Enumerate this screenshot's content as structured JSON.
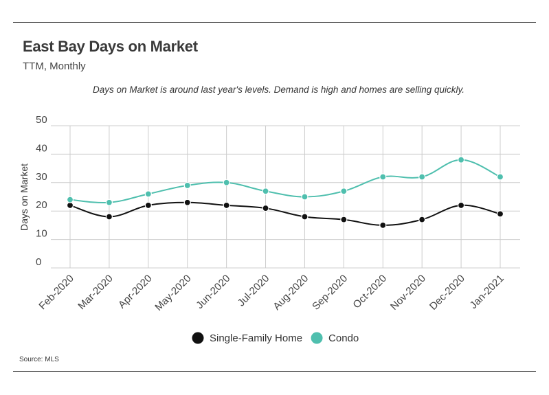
{
  "header": {
    "title": "East Bay Days on Market",
    "subtitle": "TTM, Monthly"
  },
  "annotation": "Days on Market is around last year's levels. Demand is high and homes are selling quickly.",
  "source": "Source:  MLS",
  "colors": {
    "single_family": "#111111",
    "condo": "#4fbfae",
    "grid": "#cccccc"
  },
  "chart_data": {
    "type": "line",
    "title": "East Bay Days on Market",
    "subtitle": "TTM, Monthly",
    "xlabel": "",
    "ylabel": "Days on Market",
    "ylim": [
      0,
      50
    ],
    "yticks": [
      0,
      10,
      20,
      30,
      40,
      50
    ],
    "grid": true,
    "legend_position": "bottom-center",
    "categories": [
      "Feb-2020",
      "Mar-2020",
      "Apr-2020",
      "May-2020",
      "Jun-2020",
      "Jul-2020",
      "Aug-2020",
      "Sep-2020",
      "Oct-2020",
      "Nov-2020",
      "Dec-2020",
      "Jan-2021"
    ],
    "series": [
      {
        "name": "Single-Family Home",
        "color": "#111111",
        "values": [
          22,
          18,
          22,
          23,
          22,
          21,
          18,
          17,
          15,
          17,
          22,
          19
        ]
      },
      {
        "name": "Condo",
        "color": "#4fbfae",
        "values": [
          24,
          23,
          26,
          29,
          30,
          27,
          25,
          27,
          32,
          32,
          38,
          32
        ]
      }
    ]
  }
}
